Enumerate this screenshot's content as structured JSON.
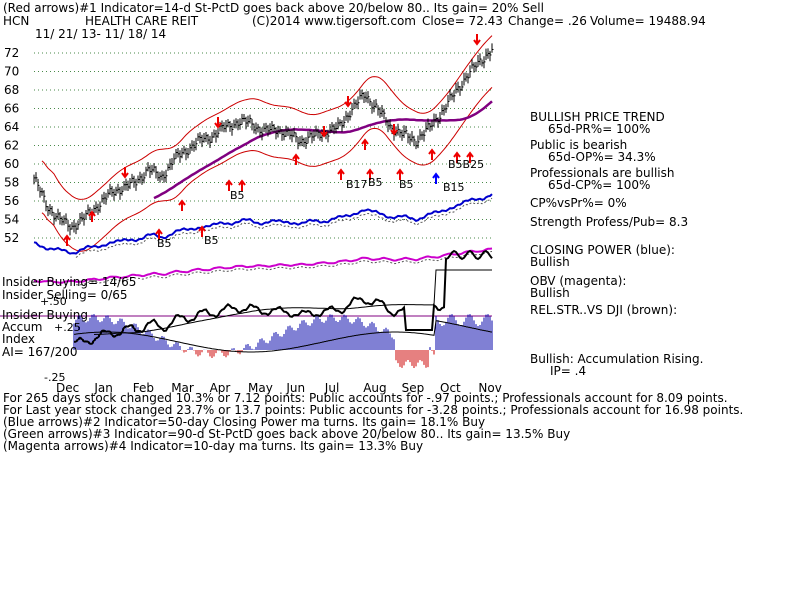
{
  "header": {
    "line1": "(Red arrows)#1 Indicator=14-d St-PctD goes back above 20/below 80.. Its gain= 20% Sell",
    "symbol": "HCN",
    "company": "HEALTH CARE REIT",
    "copyright": "(C)2014 www.tigersoft.com",
    "close": "Close= 72.43",
    "change": "Change= .26",
    "volume": "Volume= 19488.94",
    "dates": "11/ 21/ 13- 11/ 18/ 14"
  },
  "price_panel": {
    "y_ticks": [
      "72",
      "70",
      "68",
      "66",
      "64",
      "62",
      "60",
      "58",
      "56",
      "54",
      "52"
    ],
    "labels": [
      {
        "text": "B5",
        "key": "b5a"
      },
      {
        "text": "B5",
        "key": "b5b"
      },
      {
        "text": "B5",
        "key": "b5c"
      },
      {
        "text": "B17",
        "key": "b17"
      },
      {
        "text": "B5",
        "key": "b5d"
      },
      {
        "text": "B5",
        "key": "b5e"
      },
      {
        "text": "B15",
        "key": "b15"
      },
      {
        "text": "B5B25",
        "key": "b5b25"
      }
    ]
  },
  "lower_panel": {
    "insider_buying": "Insider Buying= 14/65",
    "insider_selling": "Insider Selling= 0/65",
    "tick_p50": "+.50",
    "insider_buying2": "Insider Buying",
    "accum_label": "Accum",
    "tick_p25": "+.25",
    "index_label": "Index",
    "ai_label": "AI= 167/200",
    "tick_m25": "-.25",
    "months": [
      "Dec",
      "Jan",
      "Feb",
      "Mar",
      "Apr",
      "May",
      "Jun",
      "Jul",
      "Aug",
      "Sep",
      "Oct",
      "Nov"
    ]
  },
  "right_panel": {
    "trend_title": "BULLISH PRICE TREND",
    "trend_value": "65d-PR%= 100%",
    "public_title": "Public is bearish",
    "public_value": "65d-OP%= 34.3%",
    "pros_title": "Professionals are bullish",
    "pros_value": "65d-CP%= 100%",
    "cp_vs_pr": "CP%vsPr%= 0%",
    "strength": "Strength Profess/Pub= 8.3",
    "closing_power_title": "CLOSING POWER (blue):",
    "closing_power_value": "Bullish",
    "obv_title": "OBV (magenta):",
    "obv_value": "Bullish",
    "relstr": "REL.STR..VS DJI (brown):",
    "accum_text": "Bullish: Accumulation Rising.",
    "ip_text": "IP= .4"
  },
  "footer": {
    "line1": "For 265 days stock changed 10.3% or 7.12 points: Public accounts for -.97 points.; Professionals account for 8.09 points.",
    "line2": "For Last year stock changed 23.7% or 13.7 points: Public accounts for -3.28 points.; Professionals account for 16.98 points.",
    "line3": "(Blue arrows)#2 Indicator=50-day Closing Power ma turns. Its gain= 18.1% Buy",
    "line4": "(Green arrows)#3 Indicator=90-d St-PctD goes back above 20/below 80.. Its gain= 13.5% Buy",
    "line5": "(Magenta arrows)#4 Indicator=10-day ma turns. Its gain= 13.3% Buy"
  },
  "colors": {
    "price": "#000000",
    "band": "#cc0000",
    "ma": "#800080",
    "closing_power": "#0000cc",
    "obv": "#cc00cc",
    "accum_pos": "#0000aa",
    "accum_neg": "#cc0000",
    "hline": "#800080",
    "red_arrow": "#ee0000",
    "blue_arrow": "#0000ff"
  },
  "chart_data": {
    "type": "line",
    "title": "HEALTH CARE REIT",
    "y_price_range": [
      51,
      74
    ],
    "series": [
      {
        "name": "Close",
        "x": [
          "Nov 21",
          "Dec 1",
          "Dec 10",
          "Dec 20",
          "Jan 1",
          "Jan 10",
          "Jan 20",
          "Feb 1",
          "Feb 10",
          "Feb 20",
          "Mar 1",
          "Mar 10",
          "Mar 20",
          "Apr 1",
          "Apr 10",
          "Apr 20",
          "May 1",
          "May 10",
          "May 20",
          "Jun 1",
          "Jun 10",
          "Jun 20",
          "Jul 1",
          "Jul 10",
          "Jul 20",
          "Aug 1",
          "Aug 10",
          "Aug 20",
          "Sep 1",
          "Sep 10",
          "Sep 20",
          "Oct 1",
          "Oct 10",
          "Oct 20",
          "Nov 1",
          "Nov 10",
          "Nov 18"
        ],
        "values": [
          58.5,
          55.5,
          54.0,
          53.2,
          54.2,
          55.5,
          56.8,
          57.5,
          58.0,
          59.5,
          58.5,
          60.5,
          61.5,
          62.5,
          63.0,
          64.0,
          64.5,
          64.5,
          63.5,
          63.8,
          63.2,
          62.5,
          63.0,
          63.5,
          64.0,
          66.0,
          67.5,
          66.0,
          64.0,
          63.2,
          62.5,
          63.8,
          65.5,
          67.5,
          69.5,
          71.0,
          72.4
        ]
      }
    ]
  }
}
